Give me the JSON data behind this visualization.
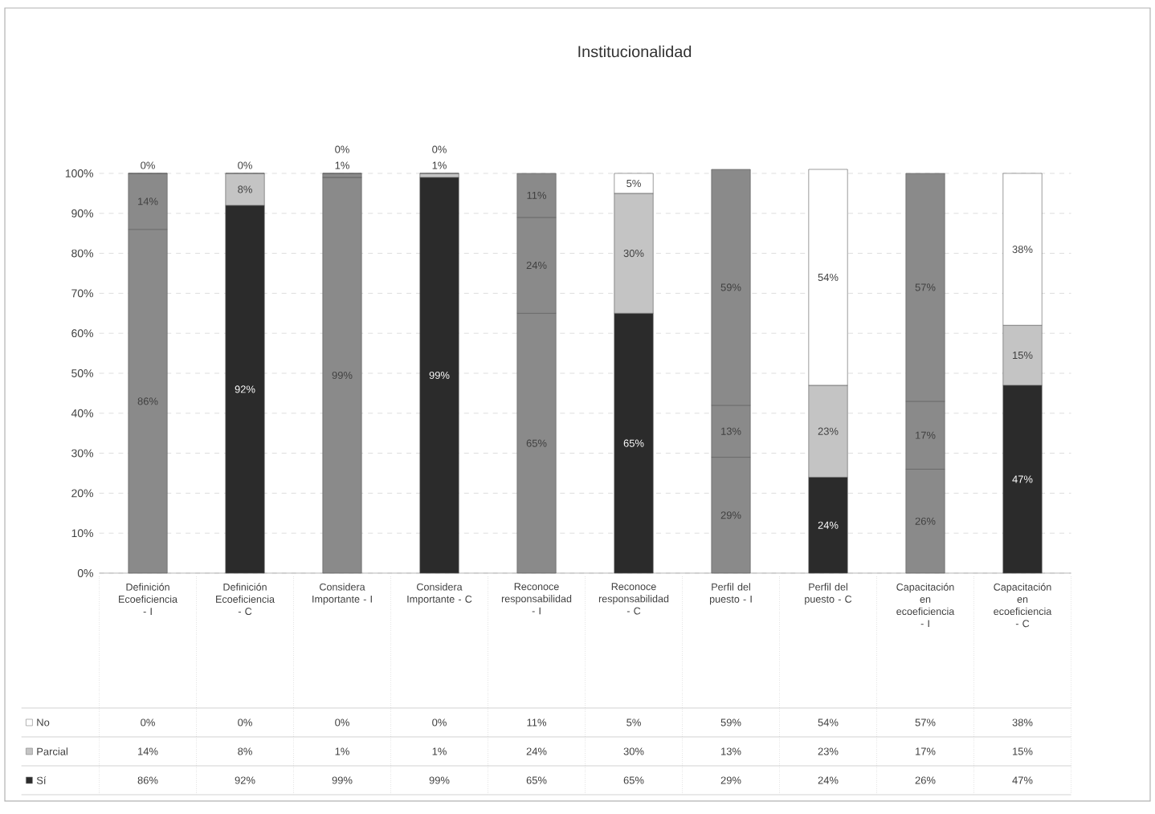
{
  "chart_data": {
    "type": "bar",
    "stacked": true,
    "title": "Institucionalidad",
    "categories": [
      "Definición Ecoeficiencia - I",
      "Definición Ecoeficiencia - C",
      "Considera Importante - I",
      "Considera Importante - C",
      "Reconoce responsabilidad - I",
      "Reconoce responsabilidad - C",
      "Perfil del puesto - I",
      "Perfil del puesto - C",
      "Capacitación en ecoeficiencia - I",
      "Capacitación en ecoeficiencia - C"
    ],
    "series": [
      {
        "name": "Sí",
        "color": "#2b2b2b",
        "colors": [
          "#8a8a8a",
          "#2b2b2b",
          "#8a8a8a",
          "#2b2b2b",
          "#8a8a8a",
          "#2b2b2b",
          "#8a8a8a",
          "#2b2b2b",
          "#8a8a8a",
          "#2b2b2b"
        ],
        "values": [
          86,
          92,
          99,
          99,
          65,
          65,
          29,
          24,
          26,
          47
        ],
        "value_labels": [
          "86%",
          "92%",
          "99%",
          "99%",
          "65%",
          "65%",
          "29%",
          "24%",
          "26%",
          "47%"
        ]
      },
      {
        "name": "Parcial",
        "color": "#c4c4c4",
        "colors": [
          "#8a8a8a",
          "#c4c4c4",
          "#8a8a8a",
          "#c4c4c4",
          "#8a8a8a",
          "#c4c4c4",
          "#8a8a8a",
          "#c4c4c4",
          "#8a8a8a",
          "#c4c4c4"
        ],
        "values": [
          14,
          8,
          1,
          1,
          24,
          30,
          13,
          23,
          17,
          15
        ],
        "value_labels": [
          "14%",
          "8%",
          "1%",
          "1%",
          "24%",
          "30%",
          "13%",
          "23%",
          "17%",
          "15%"
        ]
      },
      {
        "name": "No",
        "color": "#ffffff",
        "colors": [
          "#8a8a8a",
          "#ffffff",
          "#8a8a8a",
          "#ffffff",
          "#8a8a8a",
          "#ffffff",
          "#8a8a8a",
          "#ffffff",
          "#8a8a8a",
          "#ffffff"
        ],
        "values": [
          0,
          0,
          0,
          0,
          11,
          5,
          59,
          54,
          57,
          38
        ],
        "value_labels": [
          "0%",
          "0%",
          "0%",
          "0%",
          "11%",
          "5%",
          "59%",
          "54%",
          "57%",
          "38%"
        ]
      }
    ],
    "ylim": [
      0,
      101
    ],
    "yticks": [
      {
        "value": 0,
        "label": "0%"
      },
      {
        "value": 10,
        "label": "10%"
      },
      {
        "value": 20,
        "label": "20%"
      },
      {
        "value": 30,
        "label": "30%"
      },
      {
        "value": 40,
        "label": "40%"
      },
      {
        "value": 50,
        "label": "50%"
      },
      {
        "value": 60,
        "label": "60%"
      },
      {
        "value": 70,
        "label": "70%"
      },
      {
        "value": 80,
        "label": "80%"
      },
      {
        "value": 90,
        "label": "90%"
      },
      {
        "value": 100,
        "label": "100%"
      }
    ],
    "grid": "y",
    "legend": "bottom"
  }
}
